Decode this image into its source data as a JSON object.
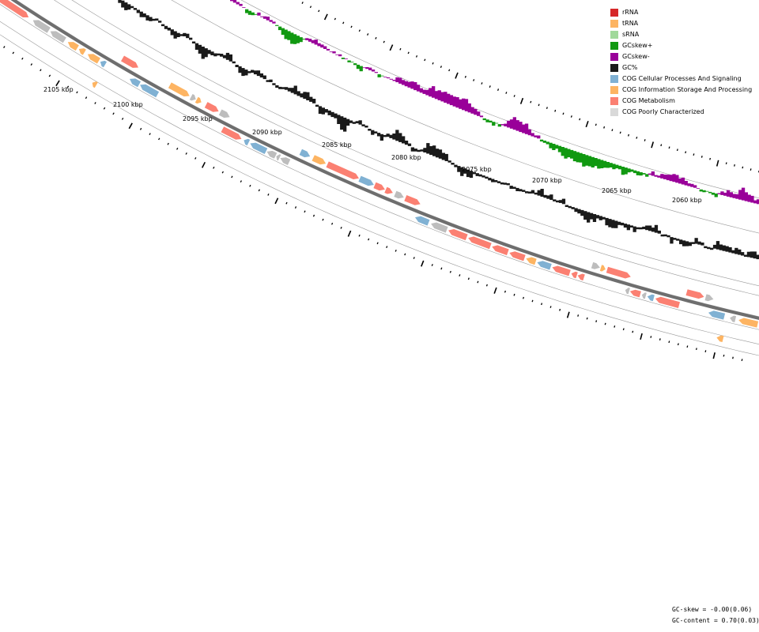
{
  "legend": [
    {
      "label": "rRNA",
      "color": "#d62728"
    },
    {
      "label": "tRNA",
      "color": "#fdb462"
    },
    {
      "label": "sRNA",
      "color": "#a1d99b"
    },
    {
      "label": "GCskew+",
      "color": "#119911"
    },
    {
      "label": "GCskew-",
      "color": "#990099"
    },
    {
      "label": "GC%",
      "color": "#1a1a1a"
    },
    {
      "label": "COG Cellular Processes And Signaling",
      "color": "#80b1d3"
    },
    {
      "label": "COG Information Storage And Processing",
      "color": "#fdb462"
    },
    {
      "label": "COG Metabolism",
      "color": "#fb8072"
    },
    {
      "label": "COG Poorly Characterized",
      "color": "#d9d9d9"
    }
  ],
  "ruler": {
    "labels": [
      "2105 kbp",
      "2100 kbp",
      "2095 kbp",
      "2090 kbp",
      "2085 kbp",
      "2080 kbp",
      "2075 kbp",
      "2070 kbp",
      "2065 kbp",
      "2060 kbp"
    ]
  },
  "stats": {
    "gc_skew": "GC-skew = -0.00(0.06)",
    "gc_content": "GC-content = 0.70(0.03)"
  },
  "genes": [
    {
      "ring": 1,
      "pos": 0.5,
      "len": 40,
      "dir": 1,
      "cog": "metabolism"
    },
    {
      "ring": 1,
      "pos": 46,
      "len": 20,
      "dir": -1,
      "cog": "poorly"
    },
    {
      "ring": 1,
      "pos": 68,
      "len": 18,
      "dir": -1,
      "cog": "poorly"
    },
    {
      "ring": 1,
      "pos": 90,
      "len": 12,
      "dir": -1,
      "cog": "info"
    },
    {
      "ring": 1,
      "pos": 104,
      "len": 7,
      "dir": -1,
      "cog": "info"
    },
    {
      "ring": 1,
      "pos": 115,
      "len": 14,
      "dir": -1,
      "cog": "info"
    },
    {
      "ring": 1,
      "pos": 131,
      "len": 6,
      "dir": -1,
      "cog": "cellular"
    },
    {
      "ring": 0,
      "pos": 150,
      "len": 20,
      "dir": 1,
      "cog": "metabolism"
    },
    {
      "ring": 0,
      "pos": 210,
      "len": 25,
      "dir": 1,
      "cog": "info"
    },
    {
      "ring": 0,
      "pos": 237,
      "len": 6,
      "dir": 1,
      "cog": "poorly"
    },
    {
      "ring": 0,
      "pos": 244,
      "len": 6,
      "dir": 1,
      "cog": "info"
    },
    {
      "ring": 0,
      "pos": 256,
      "len": 16,
      "dir": 1,
      "cog": "metabolism"
    },
    {
      "ring": 0,
      "pos": 274,
      "len": 12,
      "dir": 1,
      "cog": "poorly"
    },
    {
      "ring": 1,
      "pos": 168,
      "len": 12,
      "dir": -1,
      "cog": "cellular"
    },
    {
      "ring": 1,
      "pos": 181,
      "len": 22,
      "dir": -1,
      "cog": "cellular"
    },
    {
      "ring": 2,
      "pos": 135,
      "len": 5,
      "dir": -1,
      "cog": "info"
    },
    {
      "ring": 1,
      "pos": 285,
      "len": 24,
      "dir": 1,
      "cog": "metabolism"
    },
    {
      "ring": 1,
      "pos": 312,
      "len": 6,
      "dir": -1,
      "cog": "cellular"
    },
    {
      "ring": 1,
      "pos": 320,
      "len": 20,
      "dir": -1,
      "cog": "cellular"
    },
    {
      "ring": 1,
      "pos": 341,
      "len": 11,
      "dir": -1,
      "cog": "poorly"
    },
    {
      "ring": 1,
      "pos": 353,
      "len": 4,
      "dir": -1,
      "cog": "poorly"
    },
    {
      "ring": 1,
      "pos": 358,
      "len": 11,
      "dir": -1,
      "cog": "poorly"
    },
    {
      "ring": 0,
      "pos": 376,
      "len": 12,
      "dir": 1,
      "cog": "cellular"
    },
    {
      "ring": 0,
      "pos": 392,
      "len": 16,
      "dir": 1,
      "cog": "info"
    },
    {
      "ring": 0,
      "pos": 410,
      "len": 40,
      "dir": 1,
      "cog": "metabolism"
    },
    {
      "ring": 0,
      "pos": 451,
      "len": 18,
      "dir": 1,
      "cog": "cellular"
    },
    {
      "ring": 0,
      "pos": 470,
      "len": 13,
      "dir": 1,
      "cog": "metabolism"
    },
    {
      "ring": 0,
      "pos": 484,
      "len": 9,
      "dir": 1,
      "cog": "metabolism"
    },
    {
      "ring": 0,
      "pos": 496,
      "len": 11,
      "dir": 1,
      "cog": "poorly"
    },
    {
      "ring": 0,
      "pos": 509,
      "len": 19,
      "dir": 1,
      "cog": "metabolism"
    },
    {
      "ring": 1,
      "pos": 528,
      "len": 17,
      "dir": -1,
      "cog": "cellular"
    },
    {
      "ring": 1,
      "pos": 548,
      "len": 20,
      "dir": -1,
      "cog": "poorly"
    },
    {
      "ring": 1,
      "pos": 570,
      "len": 23,
      "dir": -1,
      "cog": "metabolism"
    },
    {
      "ring": 1,
      "pos": 595,
      "len": 28,
      "dir": -1,
      "cog": "metabolism"
    },
    {
      "ring": 1,
      "pos": 625,
      "len": 20,
      "dir": -1,
      "cog": "metabolism"
    },
    {
      "ring": 1,
      "pos": 647,
      "len": 19,
      "dir": -1,
      "cog": "metabolism"
    },
    {
      "ring": 1,
      "pos": 668,
      "len": 12,
      "dir": -1,
      "cog": "info"
    },
    {
      "ring": 1,
      "pos": 682,
      "len": 17,
      "dir": -1,
      "cog": "cellular"
    },
    {
      "ring": 1,
      "pos": 701,
      "len": 22,
      "dir": -1,
      "cog": "metabolism"
    },
    {
      "ring": 1,
      "pos": 725,
      "len": 7,
      "dir": -1,
      "cog": "metabolism"
    },
    {
      "ring": 1,
      "pos": 733,
      "len": 8,
      "dir": -1,
      "cog": "metabolism"
    },
    {
      "ring": 0,
      "pos": 746,
      "len": 10,
      "dir": 1,
      "cog": "poorly"
    },
    {
      "ring": 0,
      "pos": 757,
      "len": 6,
      "dir": 1,
      "cog": "info"
    },
    {
      "ring": 0,
      "pos": 765,
      "len": 30,
      "dir": 1,
      "cog": "metabolism"
    },
    {
      "ring": 0,
      "pos": 866,
      "len": 22,
      "dir": 1,
      "cog": "metabolism"
    },
    {
      "ring": 0,
      "pos": 890,
      "len": 10,
      "dir": 1,
      "cog": "poorly"
    },
    {
      "ring": 1,
      "pos": 793,
      "len": 5,
      "dir": -1,
      "cog": "poorly"
    },
    {
      "ring": 1,
      "pos": 799,
      "len": 13,
      "dir": -1,
      "cog": "metabolism"
    },
    {
      "ring": 1,
      "pos": 814,
      "len": 5,
      "dir": -1,
      "cog": "poorly"
    },
    {
      "ring": 1,
      "pos": 821,
      "len": 8,
      "dir": -1,
      "cog": "cellular"
    },
    {
      "ring": 1,
      "pos": 831,
      "len": 30,
      "dir": -1,
      "cog": "metabolism"
    },
    {
      "ring": 1,
      "pos": 898,
      "len": 20,
      "dir": -1,
      "cog": "cellular"
    },
    {
      "ring": 1,
      "pos": 925,
      "len": 7,
      "dir": -1,
      "cog": "poorly"
    },
    {
      "ring": 1,
      "pos": 936,
      "len": 24,
      "dir": -1,
      "cog": "info"
    },
    {
      "ring": 2,
      "pos": 915,
      "len": 8,
      "dir": -1,
      "cog": "info"
    }
  ]
}
